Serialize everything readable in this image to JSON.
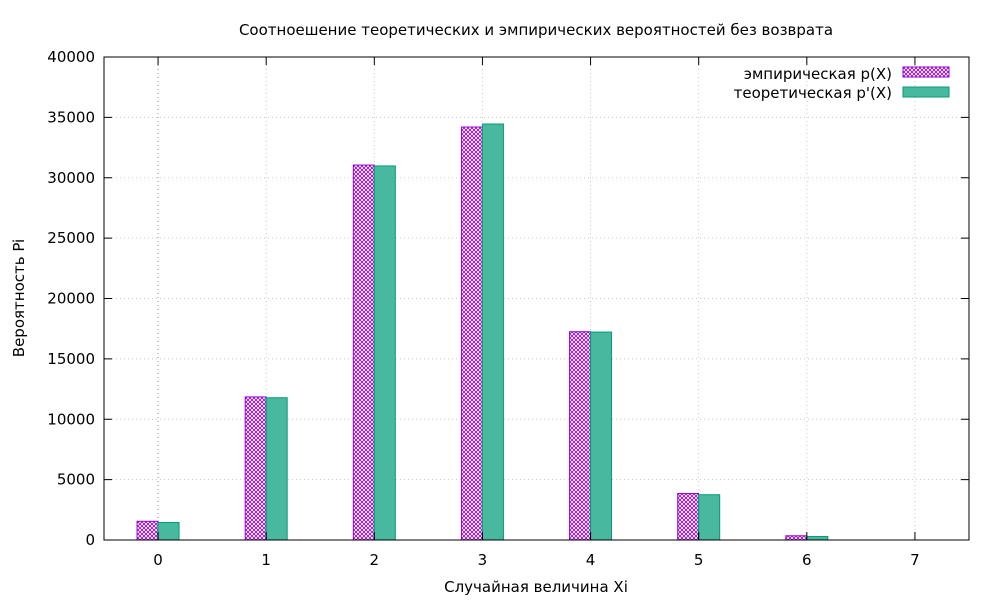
{
  "chart_data": {
    "type": "bar",
    "title": "Соотноешение теоретических и эмпирических вероятностей без возврата",
    "xlabel": "Случайная величина Xi",
    "ylabel": "Вероятность Pi",
    "categories": [
      "0",
      "1",
      "2",
      "3",
      "4",
      "5",
      "6",
      "7"
    ],
    "xlim": [
      -0.5,
      7.5
    ],
    "ylim": [
      0,
      40000
    ],
    "yticks": [
      0,
      5000,
      10000,
      15000,
      20000,
      25000,
      30000,
      35000,
      40000
    ],
    "grid": true,
    "legend_position": "top-right",
    "series": [
      {
        "name": "эмпирическая p(X)",
        "color": "#9400d3",
        "pattern": "crosshatch",
        "values": [
          1550,
          11850,
          31050,
          34200,
          17250,
          3850,
          350,
          0
        ]
      },
      {
        "name": "теоретическая p'(X)",
        "color": "#009e73",
        "fill": "#48b99e",
        "pattern": "solid",
        "values": [
          1450,
          11780,
          30980,
          34450,
          17220,
          3750,
          290,
          0
        ]
      }
    ]
  }
}
